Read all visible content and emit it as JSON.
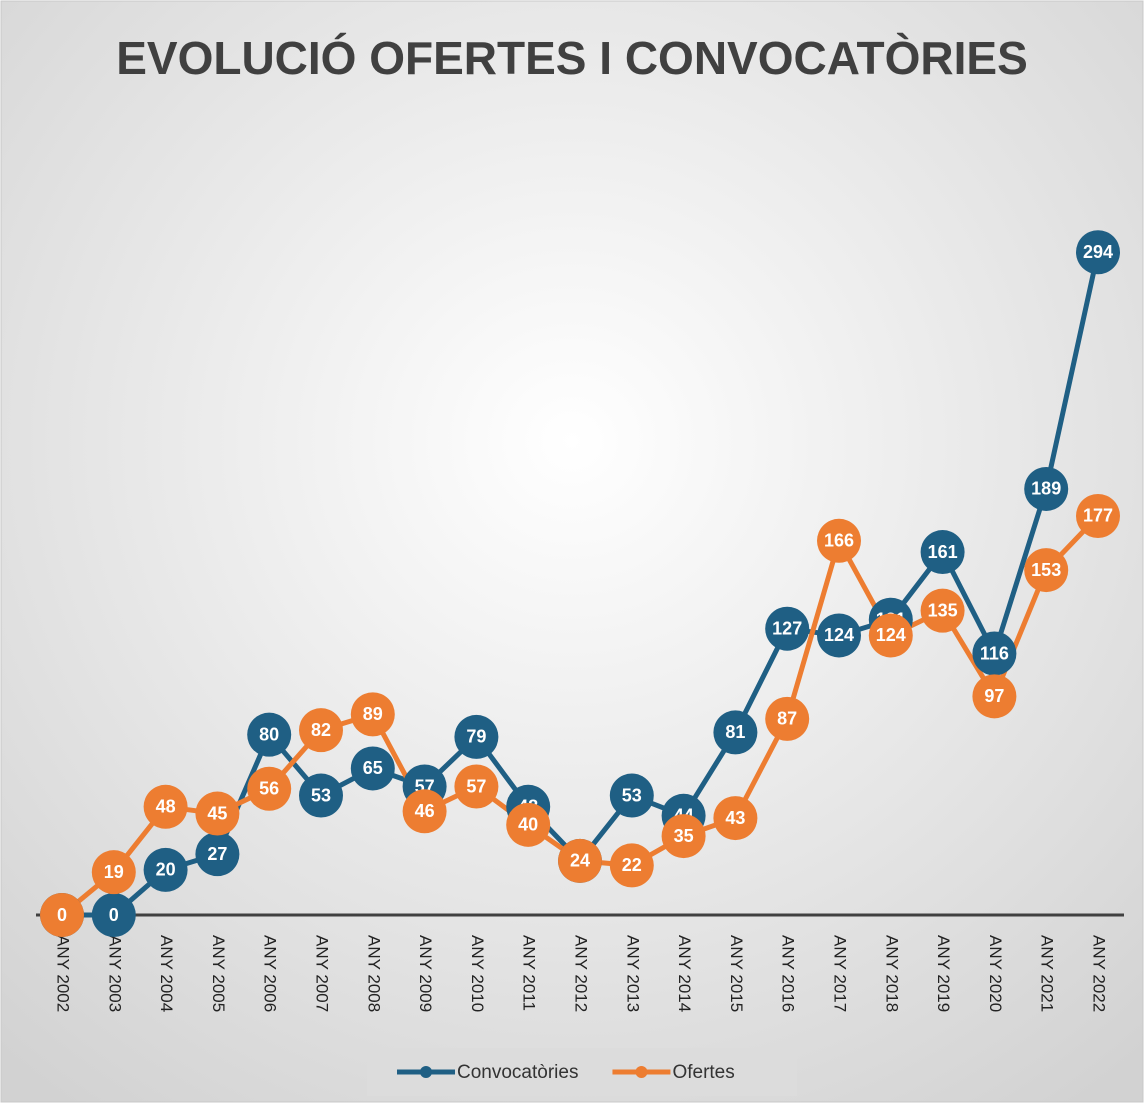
{
  "chart_data": {
    "type": "line",
    "title": "EVOLUCIÓ OFERTES I CONVOCATÒRIES",
    "categories": [
      "ANY 2002",
      "ANY 2003",
      "ANY 2004",
      "ANY 2005",
      "ANY 2006",
      "ANY 2007",
      "ANY 2008",
      "ANY 2009",
      "ANY 2010",
      "ANY 2011",
      "ANY 2012",
      "ANY 2013",
      "ANY 2014",
      "ANY 2015",
      "ANY 2016",
      "ANY 2017",
      "ANY 2018",
      "ANY 2019",
      "ANY 2020",
      "ANY 2021",
      "ANY 2022"
    ],
    "series": [
      {
        "name": "Convocatòries",
        "color": "#1f5f84",
        "values": [
          0,
          0,
          20,
          27,
          80,
          53,
          65,
          57,
          79,
          48,
          24,
          53,
          44,
          81,
          127,
          124,
          131,
          161,
          116,
          189,
          294
        ]
      },
      {
        "name": "Ofertes",
        "color": "#ed7d31",
        "values": [
          0,
          19,
          48,
          45,
          56,
          82,
          89,
          46,
          57,
          40,
          24,
          22,
          35,
          43,
          87,
          166,
          124,
          135,
          97,
          153,
          177
        ]
      }
    ],
    "ylim": [
      0,
      350
    ],
    "legend": "bottom"
  }
}
